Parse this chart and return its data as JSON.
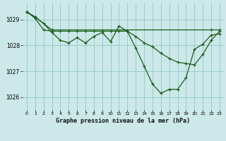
{
  "title": "Graphe pression niveau de la mer (hPa)",
  "bg_color": "#cce8e8",
  "grid_color": "#99cccc",
  "line_color": "#1a5c1a",
  "xlim": [
    -0.5,
    23.5
  ],
  "ylim": [
    1025.5,
    1029.65
  ],
  "yticks": [
    1026,
    1027,
    1028,
    1029
  ],
  "xticks": [
    0,
    1,
    2,
    3,
    4,
    5,
    6,
    7,
    8,
    9,
    10,
    11,
    12,
    13,
    14,
    15,
    16,
    17,
    18,
    19,
    20,
    21,
    22,
    23
  ],
  "series1_x": [
    0,
    1,
    2,
    3,
    4,
    5,
    6,
    7,
    8,
    9,
    10,
    11,
    12,
    13,
    14,
    15,
    16,
    17,
    18,
    19,
    20,
    21,
    22,
    23
  ],
  "series1_y": [
    1029.3,
    1029.1,
    1028.85,
    1028.5,
    1028.2,
    1028.1,
    1028.3,
    1028.1,
    1028.35,
    1028.5,
    1028.15,
    1028.75,
    1028.55,
    1027.9,
    1027.2,
    1026.5,
    1026.15,
    1026.3,
    1026.3,
    1026.75,
    1027.85,
    1028.05,
    1028.4,
    1028.45
  ],
  "series2_x": [
    0,
    1,
    2,
    3,
    4,
    5,
    6,
    7,
    8,
    9,
    10,
    11,
    12,
    13,
    14,
    15,
    16,
    17,
    18,
    19,
    20,
    21,
    22,
    23
  ],
  "series2_y": [
    1029.3,
    1029.05,
    1028.6,
    1028.55,
    1028.55,
    1028.55,
    1028.55,
    1028.55,
    1028.55,
    1028.55,
    1028.55,
    1028.55,
    1028.55,
    1028.35,
    1028.1,
    1027.95,
    1027.7,
    1027.5,
    1027.35,
    1027.3,
    1027.25,
    1027.65,
    1028.2,
    1028.55
  ],
  "series3_x": [
    0,
    1,
    3,
    22,
    23
  ],
  "series3_y": [
    1029.3,
    1029.1,
    1028.6,
    1028.6,
    1028.6
  ]
}
